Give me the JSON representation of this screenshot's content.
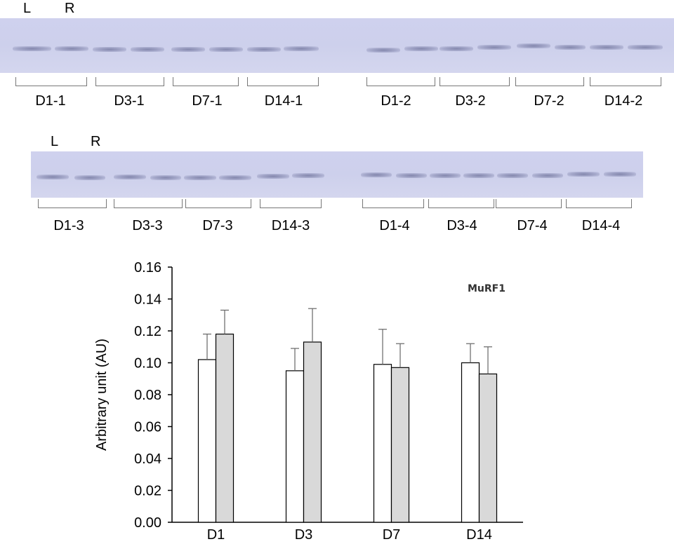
{
  "blot1": {
    "lanes": {
      "left": "L",
      "right": "R"
    },
    "groups": [
      "D1-1",
      "D3-1",
      "D7-1",
      "D14-1",
      "D1-2",
      "D3-2",
      "D7-2",
      "D14-2"
    ]
  },
  "blot2": {
    "lanes": {
      "left": "L",
      "right": "R"
    },
    "groups": [
      "D1-3",
      "D3-3",
      "D7-3",
      "D14-3",
      "D1-4",
      "D3-4",
      "D7-4",
      "D14-4"
    ]
  },
  "colors": {
    "left_bar": "#ffffff",
    "right_bar": "#d9d9d9",
    "axis": "#000000",
    "blot_band": "#5a5e8c"
  },
  "chart_data": {
    "type": "bar",
    "title": "MuRF1",
    "categories": [
      "D1",
      "D3",
      "D7",
      "D14"
    ],
    "series": [
      {
        "name": "L",
        "values": [
          0.102,
          0.095,
          0.099,
          0.1
        ],
        "errors": [
          0.016,
          0.014,
          0.022,
          0.012
        ]
      },
      {
        "name": "R",
        "values": [
          0.118,
          0.113,
          0.097,
          0.093
        ],
        "errors": [
          0.015,
          0.021,
          0.015,
          0.017
        ]
      }
    ],
    "xlabel": "",
    "ylabel": "Arbitrary unit (AU)",
    "ylim": [
      0,
      0.16
    ],
    "yticks": [
      "0.00",
      "0.02",
      "0.04",
      "0.06",
      "0.08",
      "0.10",
      "0.12",
      "0.14",
      "0.16"
    ],
    "grid": false,
    "legend": "none"
  }
}
